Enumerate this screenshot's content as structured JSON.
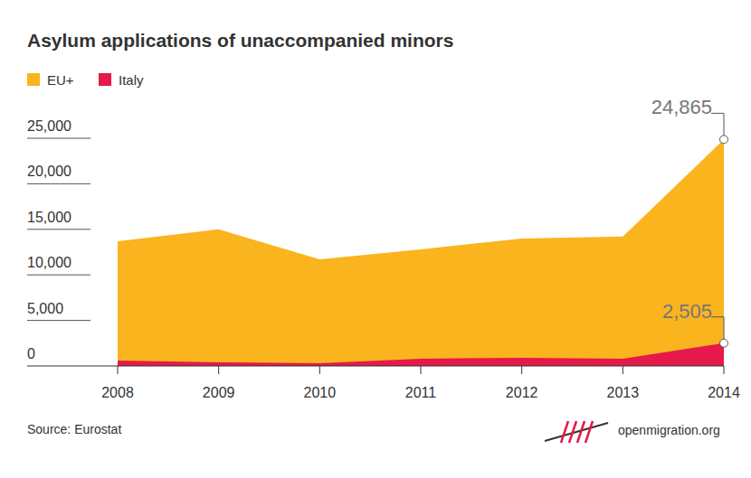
{
  "chart_data": {
    "type": "area",
    "title": "Asylum applications of unaccompanied minors",
    "categories": [
      "2008",
      "2009",
      "2010",
      "2011",
      "2012",
      "2013",
      "2014"
    ],
    "series": [
      {
        "name": "EU+",
        "color": "#fab41e",
        "values": [
          13700,
          15000,
          11700,
          12800,
          14000,
          14200,
          24865
        ],
        "value_labels": [
          null,
          null,
          null,
          null,
          null,
          null,
          "24,865"
        ]
      },
      {
        "name": "Italy",
        "color": "#e5194a",
        "values": [
          600,
          400,
          300,
          800,
          900,
          800,
          2505
        ],
        "value_labels": [
          null,
          null,
          null,
          null,
          null,
          null,
          "2,505"
        ]
      }
    ],
    "stacked": false,
    "data_labels": true,
    "legend": "top-left",
    "ylim": [
      0,
      25000
    ],
    "yticks": [
      0,
      {
        "value": 5000,
        "label": "5,000"
      },
      {
        "value": 10000,
        "label": "10,000"
      },
      {
        "value": 15000,
        "label": "15,000"
      },
      {
        "value": 20000,
        "label": "20,000"
      },
      {
        "value": 25000,
        "label": "25,000"
      }
    ],
    "source": "Source: Eurostat",
    "credit": "openmigration.org"
  }
}
